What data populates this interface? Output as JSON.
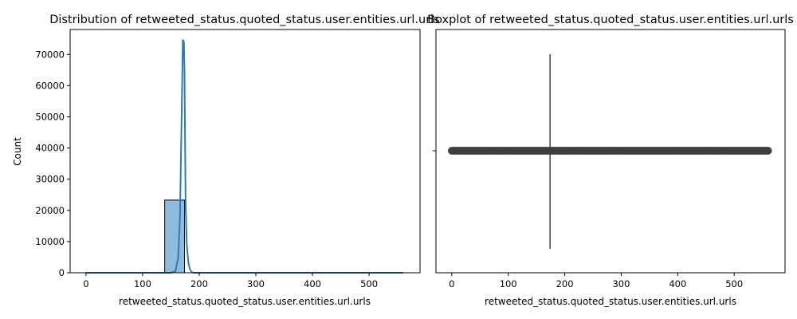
{
  "chart_data": [
    {
      "type": "histogram",
      "title": "Distribution of retweeted_status.quoted_status.user.entities.url.urls",
      "xlabel": "retweeted_status.quoted_status.user.entities.url.urls",
      "ylabel": "Count",
      "xlim": [
        -28,
        590
      ],
      "ylim": [
        0,
        78000
      ],
      "xticks": [
        0,
        100,
        200,
        300,
        400,
        500
      ],
      "yticks": [
        0,
        10000,
        20000,
        30000,
        40000,
        50000,
        60000,
        70000
      ],
      "bins": [
        {
          "x0": 0,
          "x1": 34,
          "count": 0
        },
        {
          "x0": 34,
          "x1": 69,
          "count": 0
        },
        {
          "x0": 69,
          "x1": 104,
          "count": 0
        },
        {
          "x0": 104,
          "x1": 139,
          "count": 0
        },
        {
          "x0": 139,
          "x1": 174,
          "count": 23300
        },
        {
          "x0": 174,
          "x1": 209,
          "count": 0
        },
        {
          "x0": 209,
          "x1": 244,
          "count": 0
        },
        {
          "x0": 244,
          "x1": 279,
          "count": 0
        },
        {
          "x0": 279,
          "x1": 314,
          "count": 0
        },
        {
          "x0": 314,
          "x1": 349,
          "count": 0
        },
        {
          "x0": 349,
          "x1": 384,
          "count": 0
        },
        {
          "x0": 384,
          "x1": 419,
          "count": 0
        },
        {
          "x0": 419,
          "x1": 454,
          "count": 0
        },
        {
          "x0": 454,
          "x1": 489,
          "count": 0
        },
        {
          "x0": 489,
          "x1": 524,
          "count": 0
        },
        {
          "x0": 524,
          "x1": 560,
          "count": 0
        }
      ],
      "kde": {
        "x": [
          0,
          100,
          150,
          158,
          163,
          166,
          168,
          170,
          171,
          172,
          173,
          174,
          175,
          176,
          178,
          181,
          184,
          187,
          190,
          200,
          300,
          400,
          560
        ],
        "y": [
          0,
          0,
          0,
          500,
          5000,
          18000,
          40000,
          62000,
          74500,
          74500,
          73800,
          64000,
          42000,
          22000,
          9000,
          3000,
          900,
          200,
          0,
          0,
          0,
          0,
          0
        ]
      },
      "colors": {
        "bar_fill": "#8fbbdc",
        "bar_edge": "#000000",
        "kde": "#2f7ab5"
      }
    },
    {
      "type": "boxplot",
      "title": "Boxplot of retweeted_status.quoted_status.user.entities.url.urls",
      "xlabel": "retweeted_status.quoted_status.user.entities.url.urls",
      "xlim": [
        -28,
        590
      ],
      "xticks": [
        0,
        100,
        200,
        300,
        400,
        500
      ],
      "box": {
        "q1": 174,
        "median": 174,
        "q3": 174,
        "whisker_low": 174,
        "whisker_high": 174
      },
      "outliers_range": [
        0,
        560
      ],
      "colors": {
        "outlier": "#3f3f3f",
        "line": "#3f3f3f"
      }
    }
  ]
}
